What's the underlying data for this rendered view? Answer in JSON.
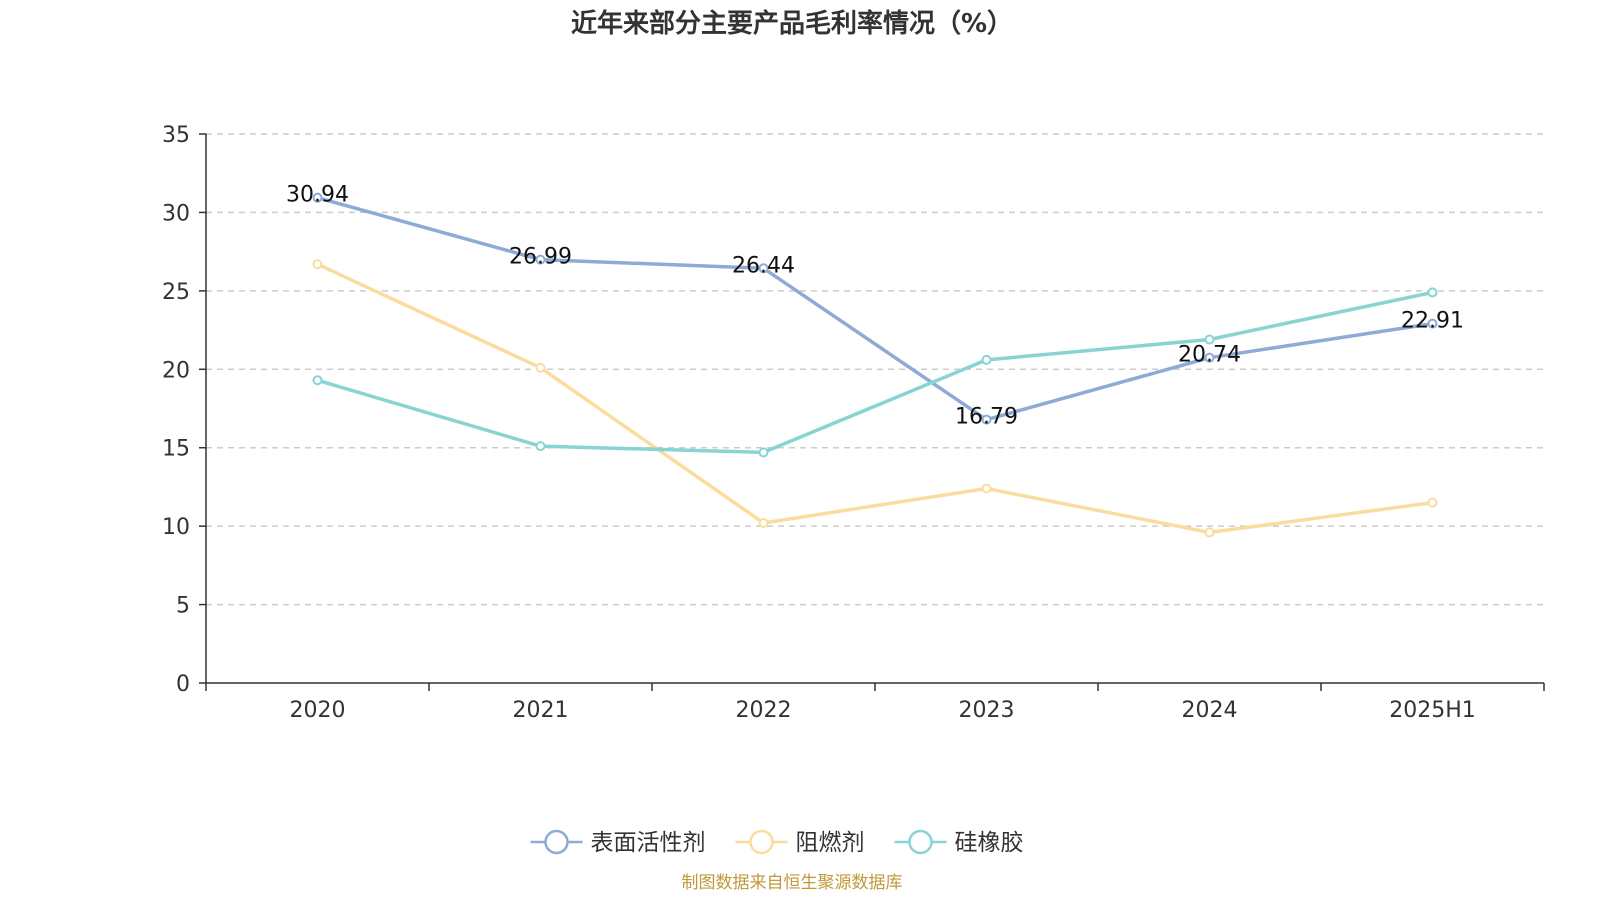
{
  "chart_data": {
    "type": "line",
    "title": "近年来部分主要产品毛利率情况（%）",
    "xlabel": "",
    "ylabel": "",
    "categories": [
      "2020",
      "2021",
      "2022",
      "2023",
      "2024",
      "2025H1"
    ],
    "ylim": [
      0,
      35
    ],
    "yticks": [
      0,
      5,
      10,
      15,
      20,
      25,
      30,
      35
    ],
    "grid": true,
    "legend_position": "bottom",
    "series": [
      {
        "name": "表面活性剂",
        "color": "#8eabd6",
        "values": [
          30.94,
          26.99,
          26.44,
          16.79,
          20.74,
          22.91
        ],
        "show_labels": true
      },
      {
        "name": "阻燃剂",
        "color": "#fbdc9e",
        "values": [
          26.7,
          20.1,
          10.2,
          12.4,
          9.6,
          11.5
        ],
        "show_labels": false
      },
      {
        "name": "硅橡胶",
        "color": "#88d4d3",
        "values": [
          19.3,
          15.1,
          14.7,
          20.6,
          21.9,
          24.9
        ],
        "show_labels": false
      }
    ],
    "source": "制图数据来自恒生聚源数据库"
  }
}
